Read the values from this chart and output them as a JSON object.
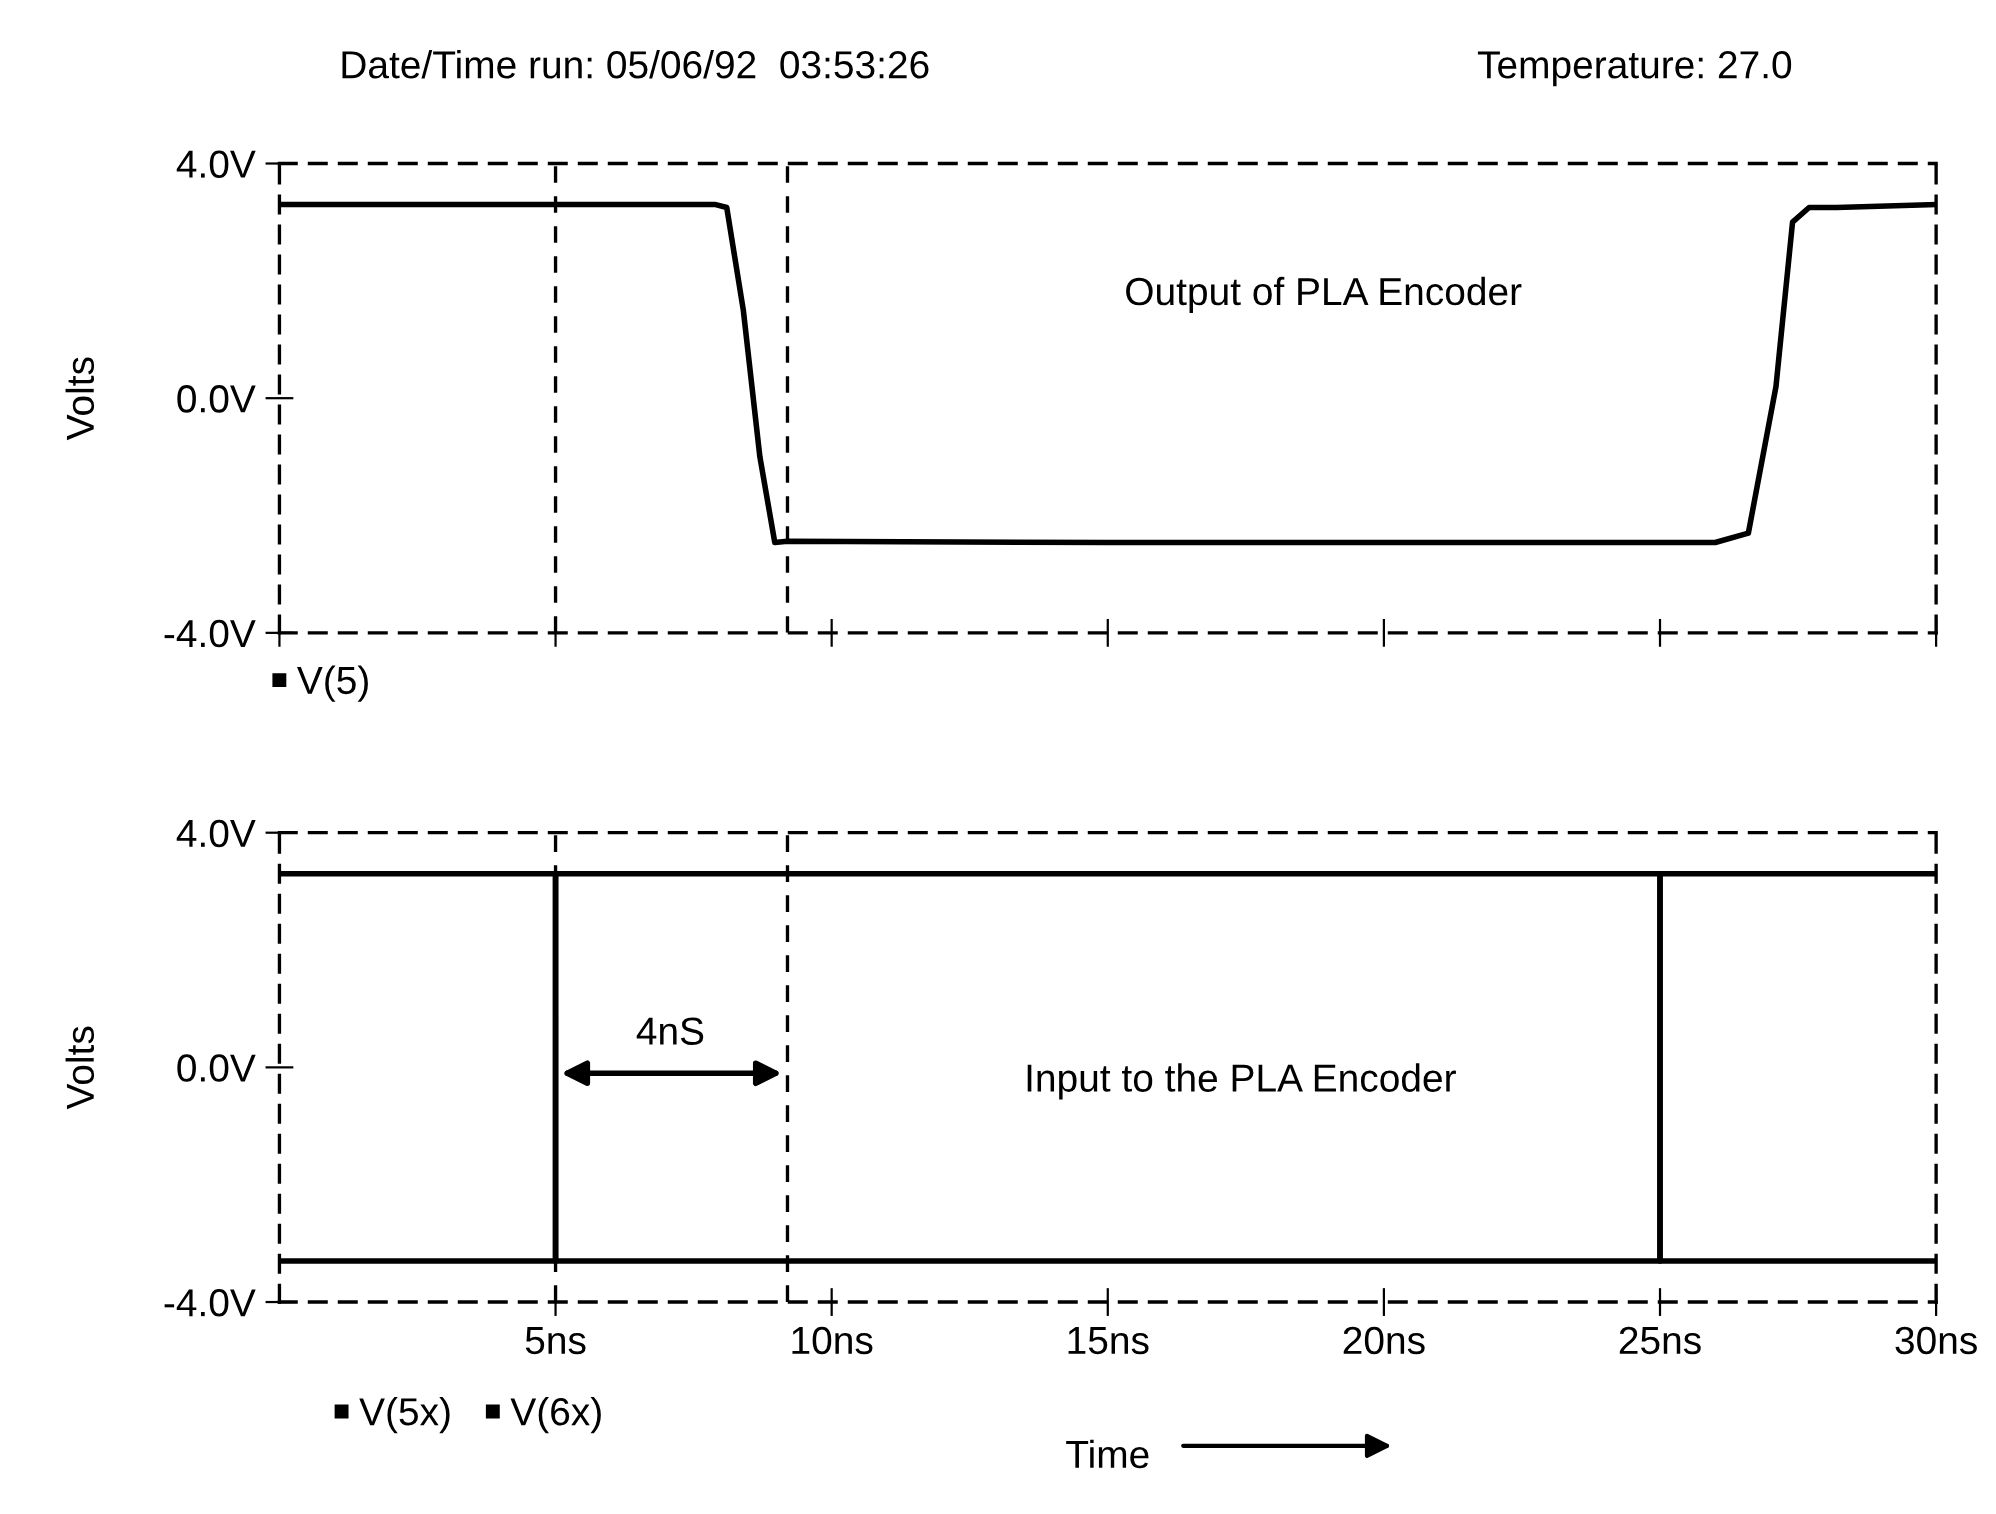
{
  "chart_data": [
    {
      "type": "line",
      "ylabel": "Volts",
      "xlim": [
        0,
        30
      ],
      "ylim": [
        -4,
        4
      ],
      "xticks": [
        0,
        5,
        10,
        15,
        20,
        25,
        30
      ],
      "yticks": [
        {
          "value": -4,
          "label": "-4.0V"
        },
        {
          "value": 0,
          "label": "0.0V"
        },
        {
          "value": 4,
          "label": "4.0V"
        }
      ],
      "tick_labels": "y",
      "grid": false,
      "legend": "bottom left",
      "annotations": [
        "Date/Time run: 05/06/92  03:53:26",
        "Temperature: 27.0",
        "Output of PLA Encoder"
      ],
      "ref_lines": [
        {
          "axis": "x",
          "value": 5,
          "color": "#000000",
          "line_style": "dashed"
        },
        {
          "axis": "x",
          "value": 9.2,
          "color": "#000000",
          "line_style": "dashed"
        }
      ],
      "series": [
        {
          "name": "V(5)",
          "color": "#000000",
          "x": [
            0,
            4,
            7.9,
            8.1,
            8.4,
            8.7,
            8.97,
            9.2,
            15,
            20,
            26.0,
            26.6,
            27.1,
            27.4,
            27.7,
            28.2,
            30
          ],
          "values": [
            3.3,
            3.3,
            3.3,
            3.25,
            1.5,
            -1.0,
            -2.46,
            -2.44,
            -2.46,
            -2.46,
            -2.46,
            -2.3,
            0.2,
            3.0,
            3.25,
            3.25,
            3.3
          ]
        }
      ]
    },
    {
      "type": "line",
      "xlabel": "Time",
      "ylabel": "Volts",
      "xlim": [
        0,
        30
      ],
      "ylim": [
        -4,
        4
      ],
      "xticks": [
        {
          "value": 5,
          "label": "5ns"
        },
        {
          "value": 10,
          "label": "10ns"
        },
        {
          "value": 15,
          "label": "15ns"
        },
        {
          "value": 20,
          "label": "20ns"
        },
        {
          "value": 25,
          "label": "25ns"
        },
        {
          "value": 30,
          "label": "30ns"
        }
      ],
      "yticks": [
        {
          "value": -4,
          "label": "-4.0V"
        },
        {
          "value": 0,
          "label": "0.0V"
        },
        {
          "value": 4,
          "label": "4.0V"
        }
      ],
      "grid": false,
      "legend": "bottom left",
      "annotations": [
        "4nS",
        "Input to the PLA Encoder"
      ],
      "ref_lines": [
        {
          "axis": "x",
          "value": 5,
          "color": "#000000",
          "line_style": "dashed"
        },
        {
          "axis": "x",
          "value": 9.2,
          "color": "#000000",
          "line_style": "dashed"
        }
      ],
      "series": [
        {
          "name": "V(5x)",
          "color": "#000000",
          "x": [
            0,
            5,
            5,
            25,
            25,
            30
          ],
          "values": [
            -3.3,
            -3.3,
            3.3,
            3.3,
            -3.3,
            -3.3
          ]
        },
        {
          "name": "V(6x)",
          "color": "#000000",
          "x": [
            0,
            5,
            5,
            25,
            25,
            30
          ],
          "values": [
            3.3,
            3.3,
            -3.3,
            -3.3,
            3.3,
            3.3
          ]
        }
      ]
    }
  ]
}
